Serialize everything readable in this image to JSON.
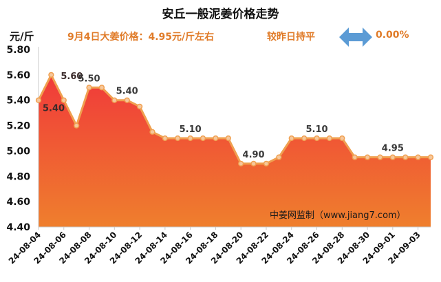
{
  "header": {
    "title": "安丘一般泥姜价格走势",
    "unit": "元/斤",
    "price_note": "9月4日大姜价格：4.95元/斤左右",
    "change_label": "较昨日持平",
    "change_value": "0.00%",
    "arrow_icon": "double-arrow-icon",
    "arrow_color": "#5b9bd5"
  },
  "watermark": "中姜网监制（www.jiang7.com）",
  "chart_data": {
    "type": "area",
    "x": [
      "24-08-04",
      "24-08-05",
      "24-08-06",
      "24-08-07",
      "24-08-08",
      "24-08-09",
      "24-08-10",
      "24-08-11",
      "24-08-12",
      "24-08-13",
      "24-08-14",
      "24-08-15",
      "24-08-16",
      "24-08-17",
      "24-08-18",
      "24-08-19",
      "24-08-20",
      "24-08-21",
      "24-08-22",
      "24-08-23",
      "24-08-24",
      "24-08-25",
      "24-08-26",
      "24-08-27",
      "24-08-28",
      "24-08-29",
      "24-08-30",
      "24-08-31",
      "24-09-01",
      "24-09-02",
      "24-09-03",
      "24-09-04"
    ],
    "values": [
      5.4,
      5.6,
      5.4,
      5.2,
      5.5,
      5.5,
      5.4,
      5.4,
      5.35,
      5.15,
      5.1,
      5.1,
      5.1,
      5.1,
      5.1,
      5.1,
      4.9,
      4.9,
      4.9,
      4.95,
      5.1,
      5.1,
      5.1,
      5.1,
      5.1,
      4.95,
      4.95,
      4.95,
      4.95,
      4.95,
      4.95,
      4.95
    ],
    "x_tick_labels": [
      "24-08-04",
      "24-08-06",
      "24-08-08",
      "24-08-10",
      "24-08-12",
      "24-08-14",
      "24-08-16",
      "24-08-18",
      "24-08-20",
      "24-08-22",
      "24-08-24",
      "24-08-26",
      "24-08-28",
      "24-08-30",
      "24-09-01",
      "24-09-03"
    ],
    "y_tick_labels": [
      "4.40",
      "4.60",
      "4.80",
      "5.00",
      "5.20",
      "5.40",
      "5.60",
      "5.80"
    ],
    "ylim": [
      4.4,
      5.8
    ],
    "data_labels": [
      {
        "index": 0,
        "text": "5.40"
      },
      {
        "index": 1,
        "text": "5.60"
      },
      {
        "index": 4,
        "text": "5.50"
      },
      {
        "index": 7,
        "text": "5.40"
      },
      {
        "index": 12,
        "text": "5.10"
      },
      {
        "index": 17,
        "text": "4.90"
      },
      {
        "index": 22,
        "text": "5.10"
      },
      {
        "index": 28,
        "text": "4.95"
      }
    ],
    "grid": false,
    "colors": {
      "line": "#f0a050",
      "marker_fill": "#f6c79c",
      "area_top": "#f03a3a",
      "area_bottom": "#ef7f2d"
    }
  }
}
